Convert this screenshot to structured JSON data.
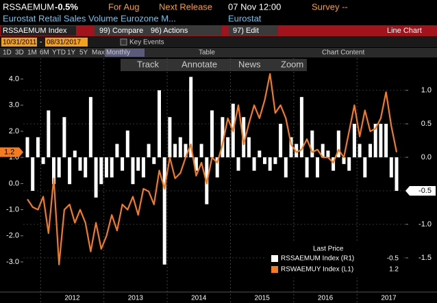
{
  "header": {
    "ticker": "RSSAEMUM",
    "change": "-0.5%",
    "period": "For Aug",
    "release_label": "Next Release",
    "release_date": "07 Nov 12:00",
    "survey": "Survey --",
    "description": "Eurostat Retail Sales Volume Eurozone M...",
    "source": "Eurostat"
  },
  "menu": {
    "security": "RSSAEMUM Index",
    "compare": "99) Compare",
    "actions": "96) Actions",
    "edit": "97) Edit",
    "view": "Line Chart"
  },
  "range": {
    "start": "10/31/2011",
    "separator": "-",
    "end": "08/31/2017",
    "key_events": "Key Events"
  },
  "tabs": [
    "1D",
    "3D",
    "1M",
    "6M",
    "YTD",
    "1Y",
    "5Y",
    "Max",
    "Monthly",
    "Table",
    "Chart Content"
  ],
  "tools": [
    "Track",
    "Annotate",
    "News",
    "Zoom"
  ],
  "chart_data": {
    "type": "bar",
    "legend_title": "Last Price",
    "x_tick_labels": [
      "2012",
      "2013",
      "2014",
      "2015",
      "2016",
      "2017"
    ],
    "series": [
      {
        "name": "RSSAEMUM Index (R1)",
        "color": "#ffffff",
        "type": "bar",
        "axis": "y2",
        "values": [
          0.3,
          -0.5,
          0.3,
          -0.1,
          0.7,
          -0.4,
          -0.3,
          0.6,
          -0.4,
          0.1,
          -0.2,
          -0.3,
          0.9,
          -0.6,
          -0.4,
          -0.3,
          -0.3,
          0.2,
          -0.2,
          0.4,
          -0.4,
          -0.2,
          -0.3,
          0.2,
          -0.1,
          1.0,
          -1.6,
          0.6,
          0.2,
          0.3,
          0.2,
          1.2,
          -0.2,
          0.2,
          -0.7,
          0.7,
          -0.3,
          0.6,
          0.3,
          0.8,
          -0.2,
          0.6,
          0.3,
          -0.2,
          0.1,
          -0.1,
          -0.2,
          -0.1,
          0.5,
          -0.3,
          0.3,
          0.2,
          0.9,
          -0.3,
          0.4,
          -0.3,
          0.2,
          0.1,
          -0.2,
          0.4,
          -0.1,
          -0.2,
          0.5,
          0.2,
          -0.3,
          0.2,
          0.5,
          0.5,
          0.5,
          -0.3,
          -0.5
        ]
      },
      {
        "name": "RSWAEMUY Index (L1)",
        "color": "#f47b20",
        "type": "line",
        "axis": "y",
        "values": [
          -0.6,
          -0.9,
          -1.0,
          -0.5,
          -1.9,
          0.2,
          -3.1,
          -1.0,
          -0.8,
          -1.5,
          -1.0,
          -1.5,
          -2.6,
          -1.5,
          -2.5,
          -2.0,
          -1.2,
          -1.8,
          -0.8,
          -1.0,
          -0.5,
          -1.2,
          -0.2,
          -0.3,
          -0.8,
          0.5,
          -0.2,
          1.0,
          0.2,
          0.4,
          1.0,
          1.5,
          0.3,
          0.8,
          0.0,
          1.0,
          0.8,
          1.5,
          2.5,
          2.0,
          3.0,
          1.5,
          2.3,
          3.0,
          2.5,
          3.2,
          4.2,
          2.7,
          3.0,
          2.5,
          1.5,
          1.2,
          1.3,
          1.7,
          1.2,
          1.3,
          1.0,
          1.0,
          0.8,
          1.3,
          1.0,
          2.0,
          3.0,
          1.8,
          2.8,
          2.0,
          2.1,
          2.5,
          3.5,
          2.2,
          1.2
        ]
      }
    ],
    "ylim": [
      -4.1,
      4.8
    ],
    "yticks": [
      {
        "value": -3,
        "label": "-3.0"
      },
      {
        "value": -2,
        "label": "-2.0"
      },
      {
        "value": -1,
        "label": "-1.0"
      },
      {
        "value": 0,
        "label": "0.0"
      },
      {
        "value": 1,
        "label": "1.0"
      },
      {
        "value": 2,
        "label": "2.0"
      },
      {
        "value": 3,
        "label": "3.0"
      },
      {
        "value": 4,
        "label": "4.0"
      }
    ],
    "y2lim": [
      -1.99,
      1.48
    ],
    "y2ticks": [
      {
        "value": -1.5,
        "label": "-1.5"
      },
      {
        "value": -1,
        "label": "-1.0"
      },
      {
        "value": -0.5,
        "label": "-0.5"
      },
      {
        "value": 0,
        "label": "0.0"
      },
      {
        "value": 0.5,
        "label": "0.5"
      },
      {
        "value": 1,
        "label": "1.0"
      }
    ],
    "grid": true
  }
}
